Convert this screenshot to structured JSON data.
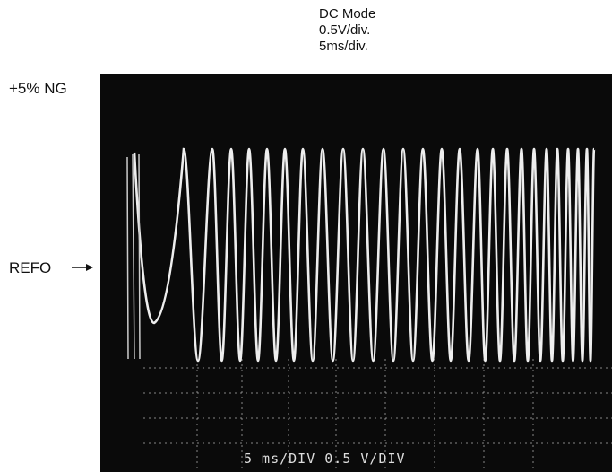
{
  "header": {
    "mode": "DC Mode",
    "volts_per_div": "0.5V/div.",
    "time_per_div": "5ms/div."
  },
  "labels": {
    "level": "+5% NG",
    "reference": "REFO"
  },
  "screen": {
    "readout": "5 ms/DIV 0.5 V/DIV"
  }
}
